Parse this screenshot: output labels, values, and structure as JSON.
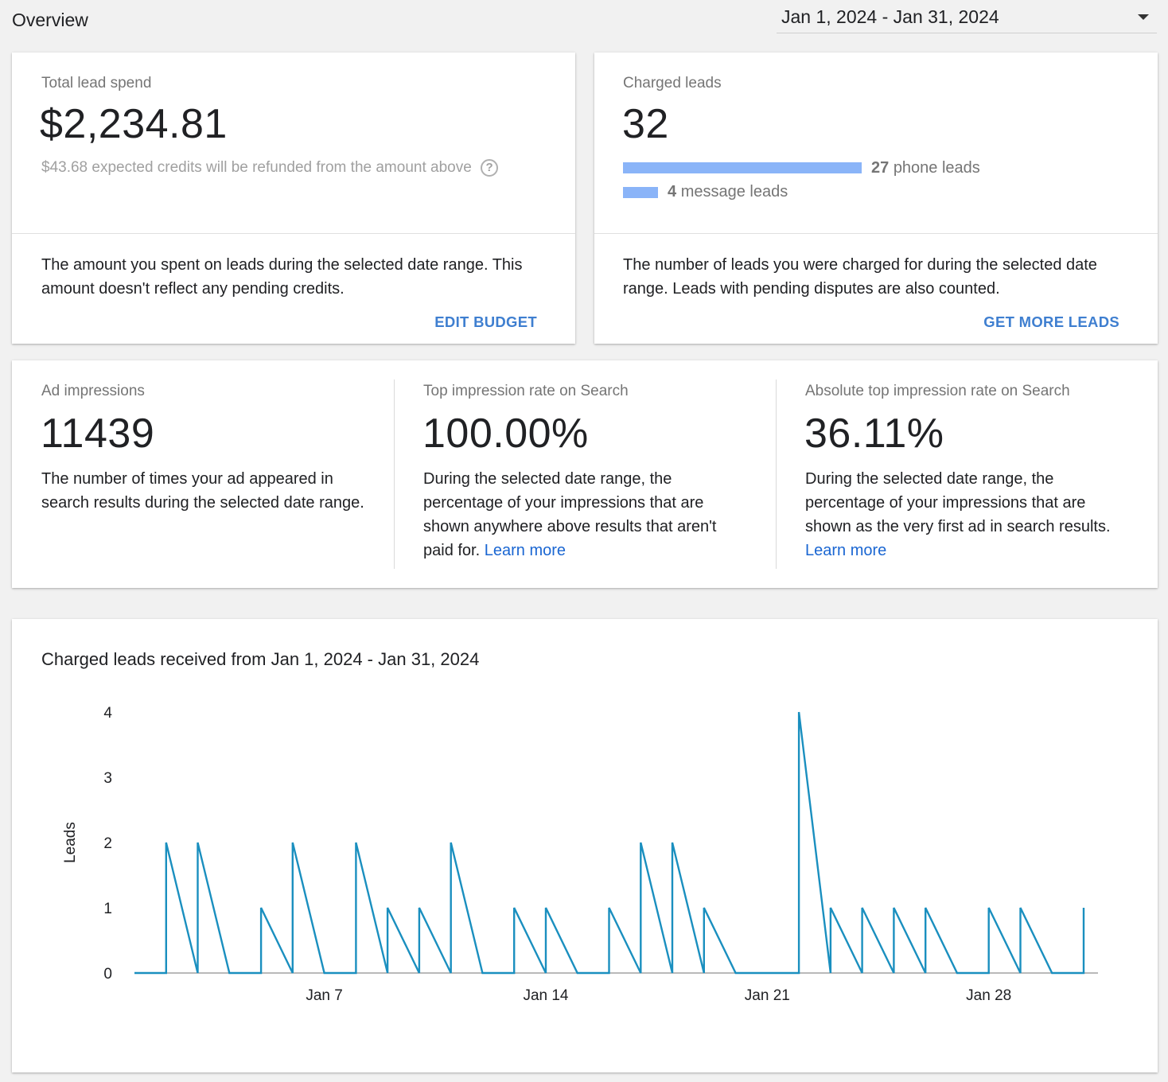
{
  "header": {
    "title": "Overview",
    "date_range": "Jan 1, 2024 - Jan 31, 2024"
  },
  "spend_card": {
    "label": "Total lead spend",
    "value": "$2,234.81",
    "credits_note": "$43.68 expected credits will be refunded from the amount above",
    "help_icon": "help-circle-icon",
    "description": "The amount you spent on leads during the selected date range. This amount doesn't reflect any pending credits.",
    "action": "EDIT BUDGET"
  },
  "leads_card": {
    "label": "Charged leads",
    "value": "32",
    "phone_count": "27",
    "phone_label": "phone leads",
    "message_count": "4",
    "message_label": "message leads",
    "phone_fraction": 0.84375,
    "message_fraction": 0.125,
    "description": "The number of leads you were charged for during the selected date range. Leads with pending disputes are also counted.",
    "action": "GET MORE LEADS"
  },
  "metrics": {
    "impressions": {
      "label": "Ad impressions",
      "value": "11439",
      "description": "The number of times your ad appeared in search results during the selected date range."
    },
    "top_rate": {
      "label": "Top impression rate on Search",
      "value": "100.00%",
      "description": "During the selected date range, the percentage of your impressions that are shown anywhere above results that aren't paid for.",
      "link": "Learn more"
    },
    "abs_top_rate": {
      "label": "Absolute top impression rate on Search",
      "value": "36.11%",
      "description": "During the selected date range, the percentage of your impressions that are shown as the very first ad in search results.",
      "link": "Learn more"
    }
  },
  "colors": {
    "accent": "#3f7fd0",
    "link": "#1a66d2",
    "bar": "#8ab4f8",
    "line": "#1a8fbf"
  },
  "chart_data": {
    "type": "line",
    "title": "Charged leads received from Jan 1, 2024 - Jan 31, 2024",
    "xlabel": "",
    "ylabel": "Leads",
    "ylim": [
      0,
      4
    ],
    "yticks": [
      0,
      1,
      2,
      3,
      4
    ],
    "xticks": [
      "Jan 7",
      "Jan 14",
      "Jan 21",
      "Jan 28"
    ],
    "xtick_days": [
      7,
      14,
      21,
      28
    ],
    "grid": false,
    "series": [
      {
        "points": [
          [
            1,
            0
          ],
          [
            2,
            0
          ],
          [
            2,
            2
          ],
          [
            3,
            0
          ],
          [
            3,
            2
          ],
          [
            4,
            0
          ],
          [
            5,
            0
          ],
          [
            5,
            1
          ],
          [
            6,
            0
          ],
          [
            6,
            2
          ],
          [
            7,
            0
          ],
          [
            8,
            0
          ],
          [
            8,
            2
          ],
          [
            9,
            0
          ],
          [
            9,
            1
          ],
          [
            10,
            0
          ],
          [
            10,
            1
          ],
          [
            11,
            0
          ],
          [
            11,
            2
          ],
          [
            12,
            0
          ],
          [
            13,
            0
          ],
          [
            13,
            1
          ],
          [
            14,
            0
          ],
          [
            14,
            1
          ],
          [
            15,
            0
          ],
          [
            16,
            0
          ],
          [
            16,
            1
          ],
          [
            17,
            0
          ],
          [
            17,
            2
          ],
          [
            18,
            0
          ],
          [
            18,
            2
          ],
          [
            19,
            0
          ],
          [
            19,
            1
          ],
          [
            20,
            0
          ],
          [
            21,
            0
          ],
          [
            22,
            0
          ],
          [
            22,
            4
          ],
          [
            23,
            0
          ],
          [
            23,
            1
          ],
          [
            24,
            0
          ],
          [
            24,
            1
          ],
          [
            25,
            0
          ],
          [
            25,
            1
          ],
          [
            26,
            0
          ],
          [
            26,
            1
          ],
          [
            27,
            0
          ],
          [
            28,
            0
          ],
          [
            28,
            1
          ],
          [
            29,
            0
          ],
          [
            29,
            1
          ],
          [
            30,
            0
          ],
          [
            31,
            0
          ],
          [
            31,
            1
          ]
        ]
      }
    ]
  }
}
